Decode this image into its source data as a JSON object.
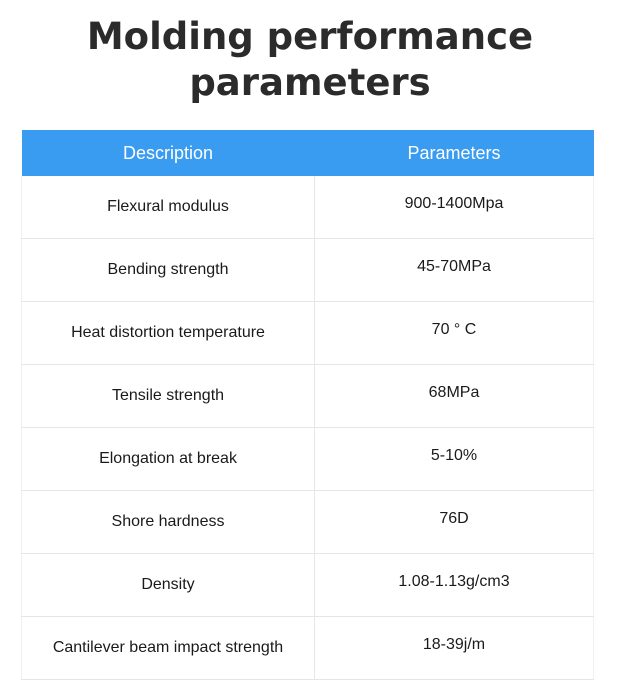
{
  "title": {
    "line1": "Molding performance",
    "line2": "parameters"
  },
  "table": {
    "headers": [
      "Description",
      "Parameters"
    ],
    "rows": [
      {
        "description": "Flexural modulus",
        "value": "900-1400Mpa"
      },
      {
        "description": "Bending strength",
        "value": "45-70MPa"
      },
      {
        "description": "Heat distortion temperature",
        "value": "70 ° C"
      },
      {
        "description": "Tensile strength",
        "value": "68MPa"
      },
      {
        "description": "Elongation at break",
        "value": "5-10%"
      },
      {
        "description": "Shore hardness",
        "value": "76D"
      },
      {
        "description": "Density",
        "value": "1.08-1.13g/cm3"
      },
      {
        "description": "Cantilever beam impact strength",
        "value": "18-39j/m"
      }
    ],
    "header_color": "#3a9cf0"
  }
}
